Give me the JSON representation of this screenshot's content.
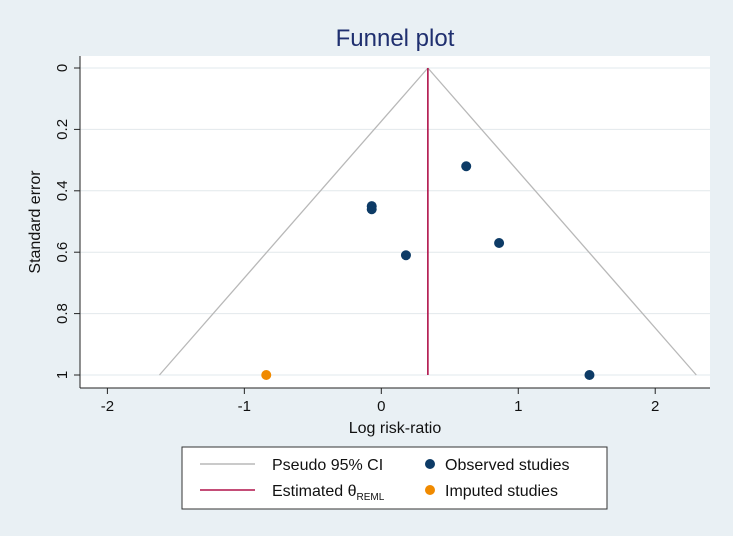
{
  "chart_data": {
    "type": "scatter",
    "title": "Funnel plot",
    "xlabel": "Log risk-ratio",
    "ylabel": "Standard error",
    "xlim": [
      -2.2,
      2.4
    ],
    "ylim": [
      1.0,
      0.0
    ],
    "y_axis_reversed": true,
    "x_ticks": [
      -2,
      -1,
      0,
      1,
      2
    ],
    "x_tick_labels": [
      "-2",
      "-1",
      "0",
      "1",
      "2"
    ],
    "y_ticks": [
      0,
      0.2,
      0.4,
      0.6,
      0.8,
      1
    ],
    "y_tick_labels": [
      "0",
      "0.2",
      "0.4",
      "0.6",
      "0.8",
      "1"
    ],
    "grid": true,
    "estimate": 0.34,
    "pseudo_ci_se_max": 1.0,
    "series": [
      {
        "name": "Observed studies",
        "color": "#0d3b66",
        "points": [
          {
            "x": 0.62,
            "y": 0.32
          },
          {
            "x": -0.07,
            "y": 0.45
          },
          {
            "x": -0.07,
            "y": 0.46
          },
          {
            "x": 0.86,
            "y": 0.57
          },
          {
            "x": 0.18,
            "y": 0.61
          },
          {
            "x": 1.52,
            "y": 1.0
          }
        ]
      },
      {
        "name": "Imputed studies",
        "color": "#f08a00",
        "points": [
          {
            "x": -0.84,
            "y": 1.0
          }
        ]
      }
    ],
    "legend": {
      "position": "bottom",
      "items": [
        {
          "label": "Pseudo 95% CI",
          "kind": "line",
          "color": "#b8b8b8"
        },
        {
          "label": "Observed studies",
          "kind": "marker",
          "color": "#0d3b66"
        },
        {
          "label": "Estimated θ",
          "subscript": "REML",
          "kind": "line",
          "color": "#b0124a"
        },
        {
          "label": "Imputed studies",
          "kind": "marker",
          "color": "#f08a00"
        }
      ]
    },
    "colors": {
      "background": "#e9f0f4",
      "plot_background": "#ffffff",
      "ci_line": "#b8b8b8",
      "estimate_line": "#b0124a",
      "title": "#1f2f6f"
    }
  }
}
